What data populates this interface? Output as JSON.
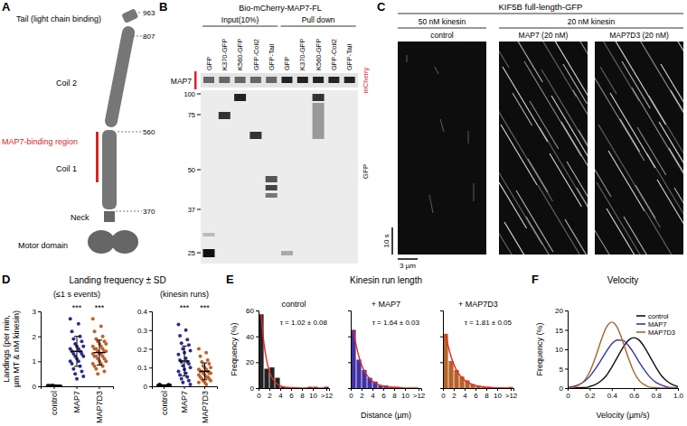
{
  "panel_labels": [
    "A",
    "B",
    "C",
    "D",
    "E",
    "F"
  ],
  "group_titles": {
    "D": "Landing frequency ± SD",
    "E": "Kinesin run length"
  },
  "diagram": {
    "tail": "Tail (light chain binding)",
    "coil2": "Coil 2",
    "binding_region": "MAP7-binding region",
    "coil1": "Coil 1",
    "neck": "Neck",
    "motor": "Motor domain",
    "residues": [
      963,
      807,
      560,
      370
    ]
  },
  "blot": {
    "title": "Bio-mCherry-MAP7-FL",
    "groups": [
      "Input(10%)",
      "Pull down"
    ],
    "lanes": [
      "GFP",
      "K370-GFP",
      "K560-GFP",
      "GFP-Coil2",
      "GFP-Tail"
    ],
    "top_label": "MAP7",
    "top_right": "mCherry",
    "bottom_right": "GFP",
    "markers": [
      100,
      75,
      50,
      37,
      25
    ]
  },
  "kymograph": {
    "title": "KIF5B full-length-GFP",
    "concentrations": [
      "50 nM kinesin",
      "20 nM kinesin"
    ],
    "conditions": [
      "control",
      "MAP7 (20 nM)",
      "MAP7D3 (20 nM)"
    ],
    "time_bar": "10 s",
    "space_bar": "3 µm"
  },
  "chart_data": [
    {
      "type": "strip",
      "title": "(≤1 s events)",
      "y_label": [
        "Landings (per min,",
        "µm MT & nM kinesin)"
      ],
      "categories": [
        "control",
        "MAP7",
        "MAP7D3"
      ],
      "colors": [
        "#111111",
        "#2e2a8c",
        "#c0622a"
      ],
      "values": [
        [
          0.02,
          0.01,
          0.03,
          0,
          0.02,
          0.01,
          0.04,
          0,
          0.01,
          0.02
        ],
        [
          2.7,
          2.5,
          2.2,
          2.0,
          1.9,
          1.8,
          1.7,
          1.6,
          1.6,
          1.5,
          1.5,
          1.4,
          1.4,
          1.3,
          1.3,
          1.2,
          1.2,
          1.1,
          1.0,
          1.0,
          0.9,
          0.8,
          0.7,
          0.6,
          0.5,
          0.4,
          0.3
        ],
        [
          2.7,
          2.4,
          2.2,
          2.0,
          1.9,
          1.8,
          1.8,
          1.7,
          1.7,
          1.6,
          1.6,
          1.5,
          1.5,
          1.5,
          1.4,
          1.4,
          1.4,
          1.3,
          1.3,
          1.3,
          1.2,
          1.2,
          1.2,
          1.1,
          1.1,
          1.0,
          1.0,
          0.9,
          0.9,
          0.8,
          0.8,
          0.7,
          0.6,
          0.5
        ]
      ],
      "mean": [
        0.02,
        1.4,
        1.35
      ],
      "sd": [
        0.01,
        0.6,
        0.5
      ],
      "significance": [
        {
          "category": 1,
          "label": "***"
        },
        {
          "category": 2,
          "label": "***"
        }
      ],
      "ylim": [
        0,
        3
      ],
      "yticks": [
        0,
        1,
        2,
        3
      ]
    },
    {
      "type": "strip",
      "title": "(kinesin runs)",
      "categories": [
        "control",
        "MAP7",
        "MAP7D3"
      ],
      "colors": [
        "#111111",
        "#2e2a8c",
        "#c0622a"
      ],
      "values": [
        [
          0.005,
          0,
          0.01,
          0.003,
          0.004,
          0.008,
          0,
          0.006
        ],
        [
          0.33,
          0.3,
          0.27,
          0.25,
          0.23,
          0.22,
          0.2,
          0.19,
          0.18,
          0.17,
          0.15,
          0.14,
          0.13,
          0.13,
          0.12,
          0.11,
          0.1,
          0.09,
          0.08,
          0.07,
          0.06,
          0.05,
          0.04,
          0.03,
          0.02,
          0.01
        ],
        [
          0.2,
          0.18,
          0.16,
          0.14,
          0.13,
          0.12,
          0.11,
          0.1,
          0.1,
          0.09,
          0.09,
          0.08,
          0.08,
          0.08,
          0.07,
          0.07,
          0.07,
          0.06,
          0.06,
          0.05,
          0.05,
          0.05,
          0.04,
          0.04,
          0.03,
          0.03,
          0.02,
          0.02,
          0.01
        ]
      ],
      "mean": [
        0.005,
        0.135,
        0.08
      ],
      "sd": [
        0.003,
        0.08,
        0.045
      ],
      "significance": [
        {
          "category": 1,
          "label": "***"
        },
        {
          "category": 2,
          "label": "***"
        }
      ],
      "ylim": [
        0,
        0.4
      ],
      "yticks": [
        0,
        0.1,
        0.2,
        0.3,
        0.4
      ]
    },
    {
      "type": "histogram",
      "title": "control",
      "y_label": "Frequency (%)",
      "color": "#222222",
      "bins": [
        0,
        1,
        2,
        3,
        4,
        5,
        6,
        7,
        8,
        9,
        10,
        11,
        12,
        13
      ],
      "counts": [
        57,
        15,
        16,
        8,
        1,
        0,
        0,
        0,
        0,
        1,
        1,
        0,
        1
      ],
      "fit": {
        "color": "#e8271f",
        "x": [
          0.5,
          1,
          1.5,
          2,
          2.5,
          3,
          4,
          5,
          6,
          8,
          10,
          12.5
        ],
        "values": [
          57,
          34.9,
          21.4,
          13.1,
          8,
          4.9,
          1.8,
          0.7,
          0.3,
          0,
          0,
          0
        ]
      },
      "annotation": "τ = 1.02 ± 0.08",
      "xlim": [
        0,
        13
      ],
      "xticks": [
        0,
        2,
        4,
        6,
        8,
        10,
        {
          "value": 12.5,
          "label": ">12"
        }
      ],
      "ylim": [
        0,
        60
      ],
      "yticks": [
        0,
        20,
        40,
        60
      ]
    },
    {
      "type": "histogram",
      "title": "+ MAP7",
      "x_label": "Distance (µm)",
      "color": "#3f33a3",
      "tick_labels": "x",
      "bins": [
        0,
        1,
        2,
        3,
        4,
        5,
        6,
        7,
        8,
        9,
        10,
        11,
        12,
        13
      ],
      "counts": [
        45,
        22,
        14,
        8,
        5,
        2,
        2,
        1,
        1,
        0,
        0,
        0,
        0
      ],
      "fit": {
        "color": "#e8271f",
        "x": [
          0.5,
          1,
          1.5,
          2,
          2.5,
          3,
          4,
          5,
          6,
          8,
          10,
          12.5
        ],
        "values": [
          45,
          33.2,
          24.4,
          18,
          13.3,
          9.8,
          5.3,
          2.9,
          1.6,
          0.5,
          0.1,
          0
        ]
      },
      "annotation": "τ = 1.64 ± 0.03",
      "xlim": [
        0,
        13
      ],
      "xticks": [
        0,
        2,
        4,
        6,
        8,
        10,
        {
          "value": 12.5,
          "label": ">12"
        }
      ],
      "ylim": [
        0,
        60
      ],
      "yticks": [
        0,
        20,
        40,
        60
      ]
    },
    {
      "type": "histogram",
      "title": "+ MAP7D3",
      "color": "#b5632b",
      "tick_labels": "x",
      "bins": [
        0,
        1,
        2,
        3,
        4,
        5,
        6,
        7,
        8,
        9,
        10,
        11,
        12,
        13
      ],
      "counts": [
        42,
        21,
        14,
        9,
        6,
        3,
        2,
        1,
        1,
        0,
        0,
        0,
        1
      ],
      "fit": {
        "color": "#e8271f",
        "x": [
          0.5,
          1,
          1.5,
          2,
          2.5,
          3,
          4,
          5,
          6,
          8,
          10,
          12.5
        ],
        "values": [
          42,
          31.9,
          24.2,
          18.4,
          13.9,
          10.6,
          6.1,
          3.5,
          2,
          0.7,
          0.2,
          0.1
        ]
      },
      "annotation": "τ = 1.81 ± 0.05",
      "xlim": [
        0,
        13
      ],
      "xticks": [
        0,
        2,
        4,
        6,
        8,
        10,
        {
          "value": 12.5,
          "label": ">12"
        }
      ],
      "ylim": [
        0,
        60
      ],
      "yticks": [
        0,
        20,
        40,
        60
      ]
    },
    {
      "type": "line",
      "title": "Velocity",
      "x_label": "Velocity (µm/s)",
      "y_label": "Frequency (%)",
      "legend": "top-right",
      "x": [
        0,
        0.05,
        0.1,
        0.15,
        0.2,
        0.25,
        0.3,
        0.35,
        0.4,
        0.45,
        0.5,
        0.55,
        0.6,
        0.65,
        0.7,
        0.75,
        0.8,
        0.85,
        0.9,
        0.95,
        1
      ],
      "series": [
        {
          "name": "control",
          "color": "#111111",
          "values": [
            0,
            0,
            0.1,
            0.1,
            0.4,
            0.9,
            1.8,
            3.2,
            5.4,
            7.9,
            10.4,
            12.3,
            13,
            12.3,
            10.4,
            7.9,
            5.4,
            3.2,
            1.8,
            0.9,
            0.4
          ]
        },
        {
          "name": "MAP7",
          "color": "#3b33a6",
          "values": [
            0.2,
            0.4,
            0.9,
            1.7,
            3.0,
            4.9,
            7.1,
            9.4,
            11.4,
            12.4,
            12.3,
            11.0,
            9.0,
            6.6,
            4.5,
            2.7,
            1.5,
            0.8,
            0.3,
            0.1,
            0.1
          ]
        },
        {
          "name": "MAP7D3",
          "color": "#a0662d",
          "values": [
            0.1,
            0.2,
            0.8,
            1.9,
            4.2,
            7.8,
            12.0,
            15.6,
            17,
            15.6,
            12.0,
            7.8,
            4.2,
            1.9,
            0.8,
            0.2,
            0.1,
            0,
            0,
            0,
            0
          ]
        }
      ],
      "xlim": [
        0,
        1
      ],
      "xticks": [
        0,
        0.2,
        0.4,
        0.6,
        0.8,
        {
          "value": 1,
          "label": "1.0"
        }
      ],
      "ylim": [
        0,
        20
      ],
      "yticks": [
        0,
        5,
        10,
        15,
        20
      ]
    }
  ]
}
